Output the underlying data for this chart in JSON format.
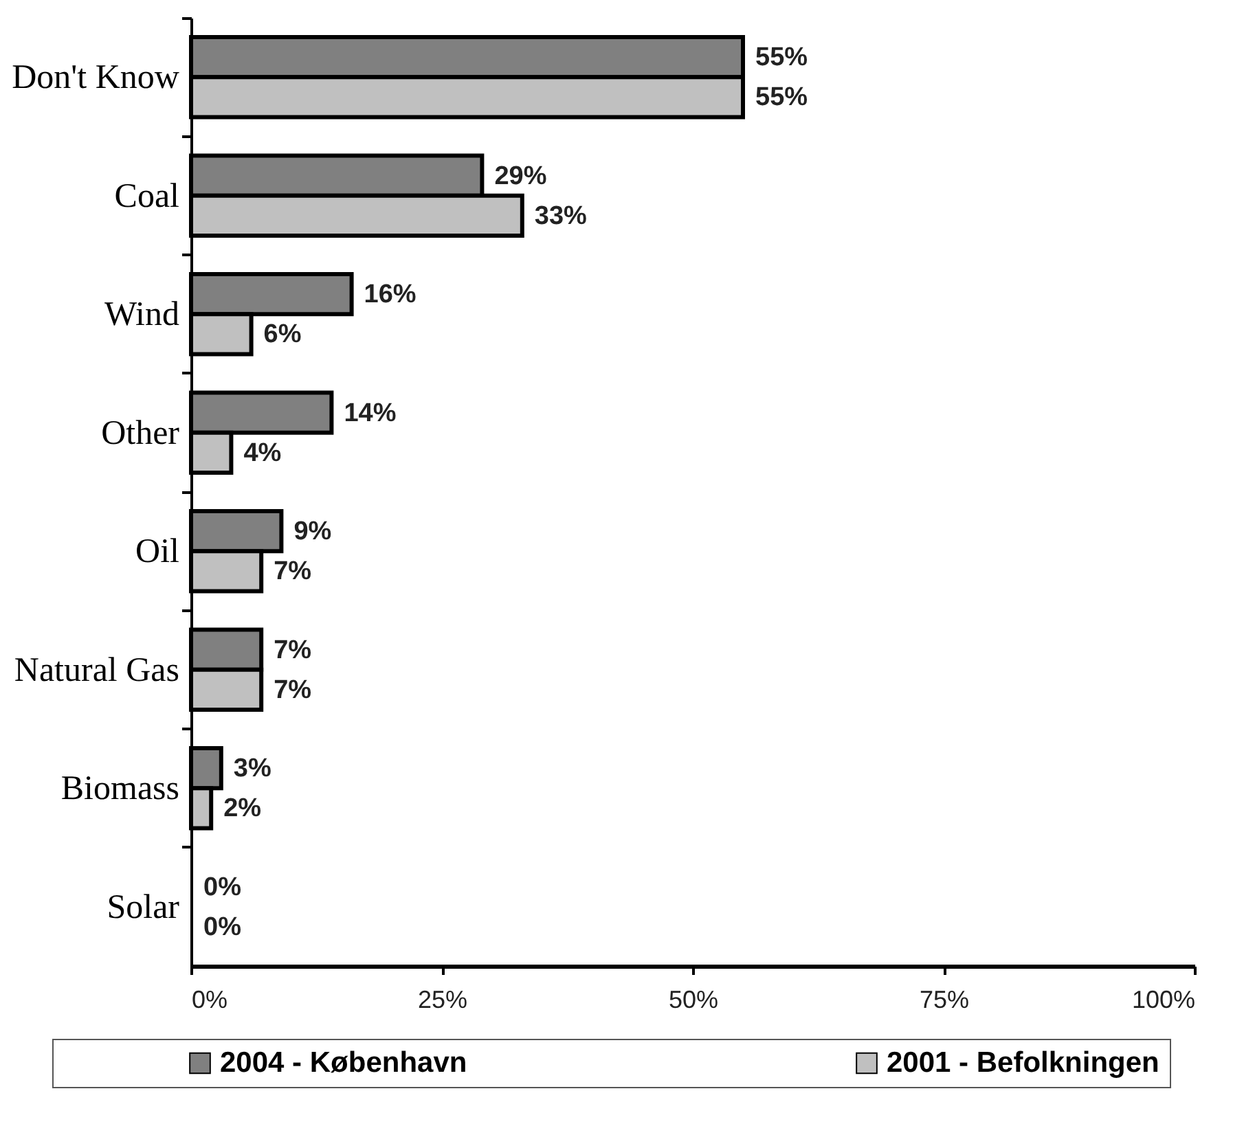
{
  "chart_data": {
    "type": "bar",
    "orientation": "horizontal",
    "categories": [
      "Don't Know",
      "Coal",
      "Wind",
      "Other",
      "Oil",
      "Natural Gas",
      "Biomass",
      "Solar"
    ],
    "series": [
      {
        "name": "2004 - København",
        "color": "#808080",
        "values": [
          55,
          29,
          16,
          14,
          9,
          7,
          3,
          0
        ],
        "value_labels": [
          "55%",
          "29%",
          "16%",
          "14%",
          "9%",
          "7%",
          "3%",
          "0%"
        ]
      },
      {
        "name": "2001 - Befolkningen",
        "color": "#c0c0c0",
        "values": [
          55,
          33,
          6,
          4,
          7,
          7,
          2,
          0
        ],
        "value_labels": [
          "55%",
          "33%",
          "6%",
          "4%",
          "7%",
          "7%",
          "2%",
          "0%"
        ]
      }
    ],
    "xlim": [
      0,
      100
    ],
    "xticks": [
      {
        "value": 0,
        "label": "0%"
      },
      {
        "value": 25,
        "label": "25%"
      },
      {
        "value": 50,
        "label": "50%"
      },
      {
        "value": 75,
        "label": "75%"
      },
      {
        "value": 100,
        "label": "100%"
      }
    ],
    "legend": "bottom",
    "grid": false
  }
}
